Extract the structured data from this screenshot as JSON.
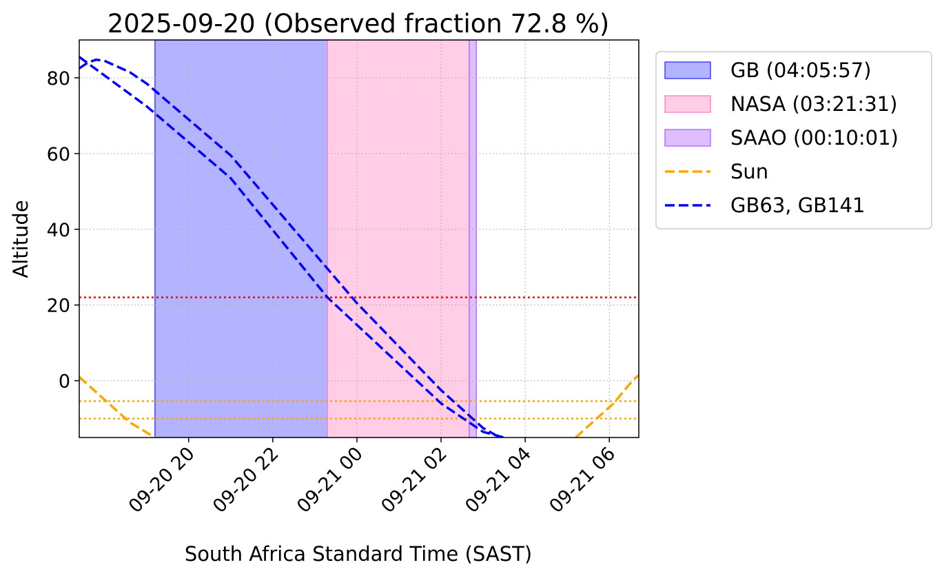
{
  "chart_data": {
    "type": "line",
    "title": "2025-09-20 (Observed fraction 72.8 %)",
    "xlabel": "South Africa Standard Time (SAST)",
    "ylabel": "Altitude",
    "xlim_hours": [
      17.4,
      30.7
    ],
    "ylim": [
      -15,
      90
    ],
    "grid": true,
    "x_ticks": [
      {
        "hour": 20,
        "label": "09-20 20"
      },
      {
        "hour": 22,
        "label": "09-20 22"
      },
      {
        "hour": 24,
        "label": "09-21 00"
      },
      {
        "hour": 26,
        "label": "09-21 02"
      },
      {
        "hour": 28,
        "label": "09-21 04"
      },
      {
        "hour": 30,
        "label": "09-21 06"
      }
    ],
    "y_ticks": [
      {
        "value": 0,
        "label": "0"
      },
      {
        "value": 20,
        "label": "20"
      },
      {
        "value": 40,
        "label": "40"
      },
      {
        "value": 60,
        "label": "60"
      },
      {
        "value": 80,
        "label": "80"
      }
    ],
    "spans": [
      {
        "name": "GB (04:05:57)",
        "start_hour": 19.2,
        "end_hour": 23.3,
        "color": "#8080ff",
        "edge": "#4040ff",
        "opacity": 0.6
      },
      {
        "name": "NASA (03:21:31)",
        "start_hour": 23.3,
        "end_hour": 26.67,
        "color": "#ffb3d9",
        "edge": "#ff88c8",
        "opacity": 0.65
      },
      {
        "name": "SAAO (00:10:01)",
        "start_hour": 26.67,
        "end_hour": 26.84,
        "color": "#d9b3ff",
        "edge": "#b070ff",
        "opacity": 0.85
      }
    ],
    "hlines": [
      {
        "value": 22,
        "color": "#ff0000",
        "style": "dotted"
      },
      {
        "value": -5.4,
        "color": "#ffa500",
        "style": "dotted"
      },
      {
        "value": -10,
        "color": "#ffa500",
        "style": "dotted"
      }
    ],
    "series": [
      {
        "name": "Sun",
        "color": "#ffa500",
        "style": "dashed",
        "show_in_legend": true,
        "points": [
          [
            17.4,
            1
          ],
          [
            18.0,
            -5
          ],
          [
            18.6,
            -11
          ],
          [
            19.2,
            -15
          ]
        ]
      },
      {
        "name": "Sun (morning)",
        "color": "#ffa500",
        "style": "dashed",
        "show_in_legend": false,
        "points": [
          [
            29.2,
            -15
          ],
          [
            29.6,
            -11
          ],
          [
            30.1,
            -6
          ],
          [
            30.55,
            0
          ],
          [
            30.7,
            1.5
          ]
        ]
      },
      {
        "name": "GB63",
        "color": "#0000ff",
        "style": "dashed",
        "show_in_legend": false,
        "points": [
          [
            17.4,
            85.5
          ],
          [
            19.0,
            72.5
          ],
          [
            21.0,
            53.5
          ],
          [
            23.3,
            22
          ],
          [
            26.0,
            -6
          ],
          [
            27.0,
            -13.5
          ],
          [
            27.5,
            -15
          ]
        ]
      },
      {
        "name": "GB141",
        "color": "#0000ff",
        "style": "dashed",
        "show_in_legend": false,
        "points": [
          [
            17.4,
            82.5
          ],
          [
            17.6,
            84.0
          ],
          [
            17.8,
            84.8
          ],
          [
            18.0,
            84.5
          ],
          [
            18.3,
            83.0
          ],
          [
            18.6,
            81.5
          ],
          [
            19.0,
            78.5
          ],
          [
            21.0,
            59.5
          ],
          [
            23.0,
            33.5
          ],
          [
            23.5,
            27
          ],
          [
            24.0,
            20.5
          ],
          [
            26.0,
            -2.5
          ],
          [
            27.0,
            -12.5
          ],
          [
            27.4,
            -15
          ]
        ]
      }
    ],
    "legend": {
      "placement": "outside-right-top",
      "entries": [
        {
          "label": "GB (04:05:57)",
          "kind": "patch",
          "color": "#8080ff",
          "edge": "#4040ff",
          "opacity": 0.6
        },
        {
          "label": "NASA (03:21:31)",
          "kind": "patch",
          "color": "#ffb3d9",
          "edge": "#ff88c8",
          "opacity": 0.65
        },
        {
          "label": "SAAO (00:10:01)",
          "kind": "patch",
          "color": "#d9b3ff",
          "edge": "#b070ff",
          "opacity": 0.85
        },
        {
          "label": "Sun",
          "kind": "line",
          "color": "#ffa500"
        },
        {
          "label": "GB63, GB141",
          "kind": "line",
          "color": "#0000ff"
        }
      ]
    }
  }
}
